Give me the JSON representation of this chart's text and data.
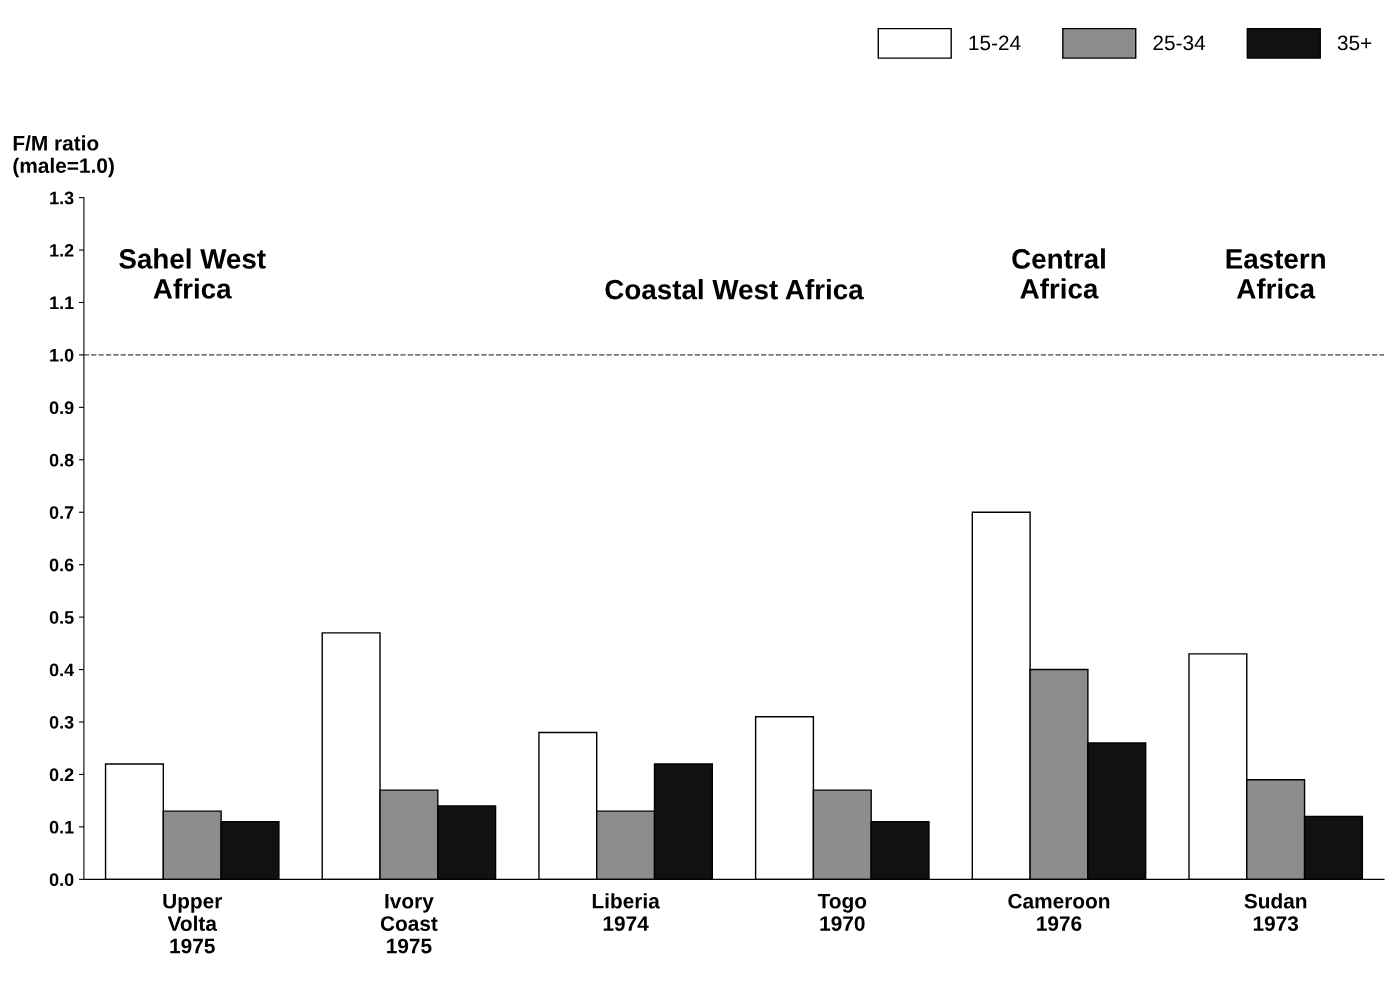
{
  "chart_data": {
    "type": "bar",
    "ylabel": "F/M ratio\n(male=1.0)",
    "categories": [
      "Upper\nVolta\n1975",
      "Ivory\nCoast\n1975",
      "Liberia\n1974",
      "Togo\n1970",
      "Cameroon\n1976",
      "Sudan\n1973"
    ],
    "series": [
      {
        "name": "15-24",
        "color": "#ffffff",
        "values": [
          0.22,
          0.47,
          0.28,
          0.31,
          0.7,
          0.43
        ]
      },
      {
        "name": "25-34",
        "color": "#8c8c8c",
        "values": [
          0.13,
          0.17,
          0.13,
          0.17,
          0.4,
          0.19
        ]
      },
      {
        "name": "35+",
        "color": "#111111",
        "values": [
          0.11,
          0.14,
          0.22,
          0.11,
          0.26,
          0.12
        ]
      }
    ],
    "ylim": [
      0,
      1.3
    ],
    "yticks": [
      {
        "value": 0,
        "label": "0.0"
      },
      0.1,
      0.2,
      0.3,
      0.4,
      0.5,
      0.6,
      0.7,
      0.8,
      0.9,
      {
        "value": 1,
        "label": "1.0"
      },
      1.1,
      1.2,
      1.3
    ],
    "ref_lines": [
      {
        "axis": "y",
        "value": 1.0,
        "label": null,
        "line_style": "dashed",
        "color": "#444444"
      }
    ],
    "annotations": [
      "Sahel West\nAfrica",
      "Coastal West Africa",
      "Central\nAfrica",
      "Eastern\nAfrica"
    ],
    "legend": "top right",
    "grid": false
  }
}
